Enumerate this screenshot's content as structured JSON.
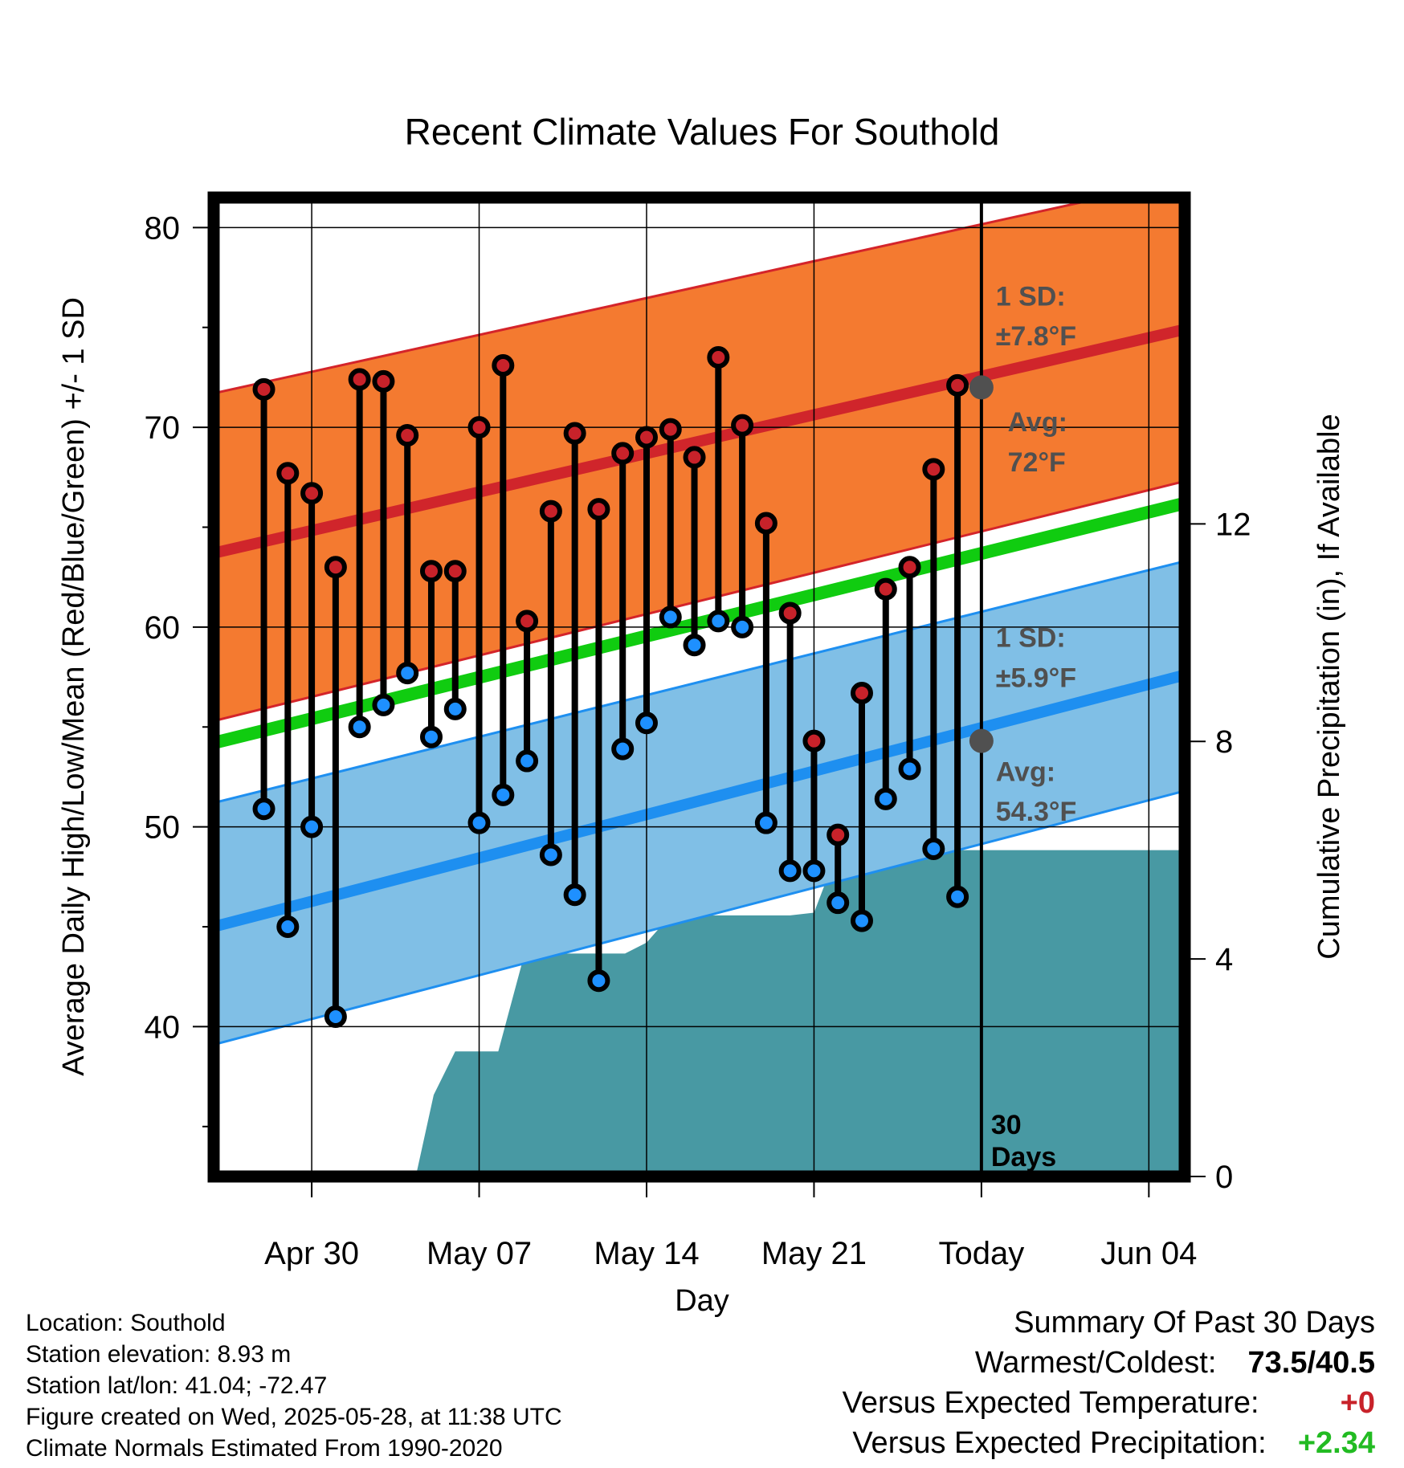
{
  "chart_data": {
    "type": "line",
    "title": "Recent Climate Values For Southold",
    "xlabel": "Day",
    "ylabel": "Average Daily High/Low/Mean (Red/Blue/Green) +/- 1 SD",
    "y2label": "Cumulative Precipitation (in), If Available",
    "ylim": [
      32.5,
      81.5
    ],
    "y2lim": [
      0,
      18
    ],
    "xlim": [
      -4.1,
      36.5
    ],
    "x_ticks": [
      {
        "x": 0,
        "label": "Apr 30"
      },
      {
        "x": 7,
        "label": "May 07"
      },
      {
        "x": 14,
        "label": "May 14"
      },
      {
        "x": 21,
        "label": "May 21"
      },
      {
        "x": 28,
        "label": "Today"
      },
      {
        "x": 35,
        "label": "Jun 04"
      }
    ],
    "y_ticks": [
      40,
      50,
      60,
      70,
      80
    ],
    "y2_ticks": [
      0,
      4,
      8,
      12
    ],
    "grid": true,
    "today_x": 28,
    "today_label": "30\nDays",
    "series": [
      {
        "name": "High",
        "color": "#c8222a",
        "x": [
          -2,
          -1,
          0,
          1,
          2,
          3,
          4,
          5,
          6,
          7,
          8,
          9,
          10,
          11,
          12,
          13,
          14,
          15,
          16,
          17,
          18,
          19,
          20,
          21,
          22,
          23,
          24,
          25,
          26,
          27
        ],
        "values": [
          71.9,
          67.7,
          66.7,
          63.0,
          72.4,
          72.3,
          69.6,
          62.8,
          62.8,
          70.0,
          73.1,
          60.3,
          65.8,
          69.7,
          65.9,
          68.7,
          69.5,
          69.9,
          68.5,
          73.5,
          70.1,
          65.2,
          60.7,
          54.3,
          49.6,
          56.7,
          61.9,
          63.0,
          67.9,
          72.1
        ]
      },
      {
        "name": "Low",
        "color": "#1e90ff",
        "x": [
          -2,
          -1,
          0,
          1,
          2,
          3,
          4,
          5,
          6,
          7,
          8,
          9,
          10,
          11,
          12,
          13,
          14,
          15,
          16,
          17,
          18,
          19,
          20,
          21,
          22,
          23,
          24,
          25,
          26,
          27
        ],
        "values": [
          50.9,
          45.0,
          50.0,
          40.5,
          55.0,
          56.1,
          57.7,
          54.5,
          55.9,
          50.2,
          51.6,
          53.3,
          48.6,
          46.6,
          42.3,
          53.9,
          55.2,
          60.5,
          59.1,
          60.3,
          60.0,
          50.2,
          47.8,
          47.8,
          46.2,
          45.3,
          51.4,
          52.9,
          48.9,
          46.5
        ]
      },
      {
        "name": "Mean",
        "color": "#10cc10",
        "x": [
          -4.1,
          36.5
        ],
        "values": [
          54.2,
          66.2
        ]
      }
    ],
    "normals": {
      "high": {
        "x": [
          -4.1,
          36.5
        ],
        "mean": [
          63.7,
          74.9
        ],
        "upper": [
          71.7,
          82.4
        ],
        "lower": [
          55.3,
          67.3
        ]
      },
      "low": {
        "x": [
          -4.1,
          36.5
        ],
        "mean": [
          45.0,
          57.6
        ],
        "upper": [
          51.2,
          63.3
        ],
        "lower": [
          39.1,
          51.8
        ]
      }
    },
    "precip": {
      "x": [
        -4.1,
        0,
        1,
        3.6,
        4.4,
        5.1,
        6,
        7,
        7.8,
        8.9,
        9.3,
        13.1,
        14,
        15,
        16,
        17,
        18,
        19,
        20,
        21,
        22,
        23,
        24,
        25,
        26,
        27,
        28,
        36.5
      ],
      "values": [
        0,
        0,
        0,
        0,
        0.1,
        1.5,
        2.3,
        2.3,
        2.3,
        4.1,
        4.1,
        4.1,
        4.3,
        4.8,
        4.8,
        4.8,
        4.8,
        4.8,
        4.8,
        4.85,
        6.0,
        6.0,
        6.0,
        6.0,
        6.0,
        6.0,
        6.0,
        6.0
      ],
      "color": "#4899a3"
    },
    "annotations": [
      {
        "text": "1 SD:",
        "x": 28.6,
        "y": 76.1
      },
      {
        "text": "±7.8°F",
        "x": 28.6,
        "y": 74.1
      },
      {
        "text": "Avg:",
        "x": 29.1,
        "y": 69.8
      },
      {
        "text": "72°F",
        "x": 29.1,
        "y": 67.8
      },
      {
        "text": "1 SD:",
        "x": 28.6,
        "y": 59.0
      },
      {
        "text": "±5.9°F",
        "x": 28.6,
        "y": 57.0
      },
      {
        "text": "Avg:",
        "x": 28.6,
        "y": 52.3
      },
      {
        "text": "54.3°F",
        "x": 28.6,
        "y": 50.3
      }
    ],
    "today_markers": [
      {
        "y": 72.0,
        "color": "#505050"
      },
      {
        "y": 54.3,
        "color": "#505050"
      }
    ]
  },
  "info": {
    "location": "Location: Southold",
    "elevation": "Station elevation: 8.93 m",
    "latlon": "Station lat/lon: 41.04; -72.47",
    "created": "Figure created on Wed, 2025-05-28, at 11:38 UTC",
    "normals": "Climate Normals Estimated From 1990-2020"
  },
  "summary": {
    "heading": "Summary Of Past 30 Days",
    "warm_cold_label": "Warmest/Coldest:",
    "warm_cold_value": "73.5/40.5",
    "temp_label": "Versus Expected Temperature:",
    "temp_value": "+0",
    "temp_color": "#c8222a",
    "precip_label": "Versus Expected Precipitation:",
    "precip_value": "+2.34",
    "precip_color": "#22bb22"
  }
}
